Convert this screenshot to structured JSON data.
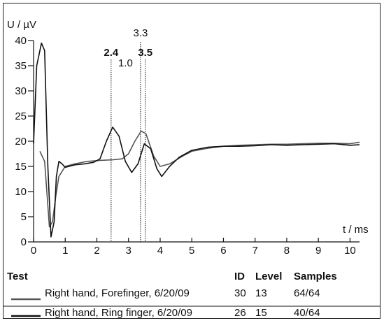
{
  "chart_data": {
    "type": "line",
    "ylabel": "U / µV",
    "xlabel": "t / ms",
    "xlim": [
      0,
      10.3
    ],
    "ylim": [
      0,
      40
    ],
    "xticks": [
      "0",
      "1",
      "2",
      "3",
      "4",
      "5",
      "6",
      "7",
      "8",
      "9",
      "10"
    ],
    "yticks": [
      "0",
      "5",
      "10",
      "15",
      "20",
      "25",
      "30",
      "35",
      "40"
    ],
    "markers": [
      {
        "label": "2.4",
        "x": 2.45,
        "bold": true
      },
      {
        "label": "3.3",
        "x": 3.38,
        "bold": false
      },
      {
        "label": "3.5",
        "x": 3.53,
        "bold": true
      }
    ],
    "interval_label": "1.0",
    "series": [
      {
        "color": "#555555",
        "points": [
          [
            0.2,
            18
          ],
          [
            0.35,
            16
          ],
          [
            0.5,
            3
          ],
          [
            0.6,
            4
          ],
          [
            0.7,
            9
          ],
          [
            0.8,
            13
          ],
          [
            1.0,
            15
          ],
          [
            1.3,
            15.5
          ],
          [
            1.7,
            16
          ],
          [
            2.1,
            16.2
          ],
          [
            2.5,
            16.3
          ],
          [
            2.8,
            16.5
          ],
          [
            3.0,
            17.5
          ],
          [
            3.2,
            20
          ],
          [
            3.4,
            22
          ],
          [
            3.55,
            21.5
          ],
          [
            3.8,
            17
          ],
          [
            4.0,
            15
          ],
          [
            4.3,
            15.5
          ],
          [
            4.7,
            17
          ],
          [
            5.0,
            18
          ],
          [
            5.5,
            18.6
          ],
          [
            6.0,
            19
          ],
          [
            6.5,
            19.2
          ],
          [
            7.0,
            19.3
          ],
          [
            7.5,
            19.4
          ],
          [
            8.0,
            19.4
          ],
          [
            8.5,
            19.5
          ],
          [
            9.0,
            19.6
          ],
          [
            9.5,
            19.6
          ],
          [
            10.0,
            19.5
          ],
          [
            10.3,
            19.8
          ]
        ]
      },
      {
        "color": "#111111",
        "points": [
          [
            0,
            19.5
          ],
          [
            0.1,
            35
          ],
          [
            0.25,
            39.5
          ],
          [
            0.35,
            38
          ],
          [
            0.45,
            15
          ],
          [
            0.55,
            1
          ],
          [
            0.65,
            4
          ],
          [
            0.72,
            13
          ],
          [
            0.8,
            16
          ],
          [
            0.9,
            15.5
          ],
          [
            1.0,
            14.8
          ],
          [
            1.3,
            15.3
          ],
          [
            1.6,
            15.5
          ],
          [
            1.9,
            15.8
          ],
          [
            2.1,
            16.5
          ],
          [
            2.3,
            20
          ],
          [
            2.5,
            22.8
          ],
          [
            2.7,
            21
          ],
          [
            2.9,
            16
          ],
          [
            3.1,
            13.8
          ],
          [
            3.3,
            15.5
          ],
          [
            3.5,
            19.5
          ],
          [
            3.7,
            18.5
          ],
          [
            3.9,
            14.5
          ],
          [
            4.05,
            13
          ],
          [
            4.3,
            15
          ],
          [
            4.6,
            16.8
          ],
          [
            5.0,
            18.2
          ],
          [
            5.5,
            18.8
          ],
          [
            6.0,
            19
          ],
          [
            6.5,
            19
          ],
          [
            7.0,
            19.1
          ],
          [
            7.5,
            19.3
          ],
          [
            8.0,
            19.2
          ],
          [
            8.5,
            19.3
          ],
          [
            9.0,
            19.4
          ],
          [
            9.5,
            19.5
          ],
          [
            10.0,
            19.2
          ],
          [
            10.3,
            19.3
          ]
        ]
      }
    ]
  },
  "table": {
    "headers": {
      "test": "Test",
      "id": "ID",
      "level": "Level",
      "samples": "Samples"
    },
    "rows": [
      {
        "color": "#555555",
        "label": "Right hand, Forefinger, 6/20/09",
        "id": "30",
        "level": "13",
        "samples": "64/64"
      },
      {
        "color": "#111111",
        "label": "Right hand, Ring finger, 6/20/09",
        "id": "26",
        "level": "15",
        "samples": "40/64"
      }
    ]
  }
}
